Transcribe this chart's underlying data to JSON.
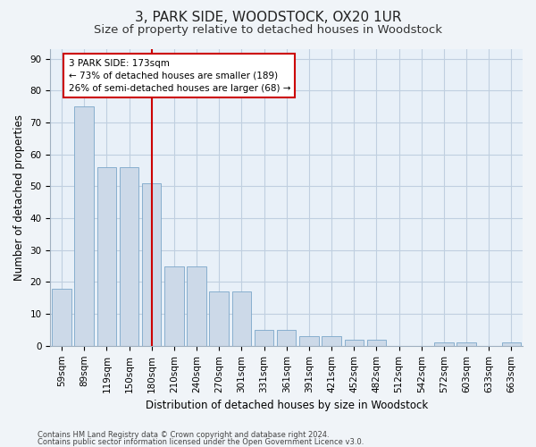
{
  "title": "3, PARK SIDE, WOODSTOCK, OX20 1UR",
  "subtitle": "Size of property relative to detached houses in Woodstock",
  "xlabel": "Distribution of detached houses by size in Woodstock",
  "ylabel": "Number of detached properties",
  "footer1": "Contains HM Land Registry data © Crown copyright and database right 2024.",
  "footer2": "Contains public sector information licensed under the Open Government Licence v3.0.",
  "categories": [
    "59sqm",
    "89sqm",
    "119sqm",
    "150sqm",
    "180sqm",
    "210sqm",
    "240sqm",
    "270sqm",
    "301sqm",
    "331sqm",
    "361sqm",
    "391sqm",
    "421sqm",
    "452sqm",
    "482sqm",
    "512sqm",
    "542sqm",
    "572sqm",
    "603sqm",
    "633sqm",
    "663sqm"
  ],
  "values": [
    18,
    75,
    56,
    56,
    51,
    25,
    25,
    17,
    17,
    5,
    5,
    3,
    3,
    2,
    2,
    0,
    0,
    1,
    1,
    0,
    1
  ],
  "bar_color": "#ccd9e8",
  "bar_edge_color": "#7ba7c9",
  "vline_x_index": 4,
  "vline_color": "#cc0000",
  "annotation_text": "3 PARK SIDE: 173sqm\n← 73% of detached houses are smaller (189)\n26% of semi-detached houses are larger (68) →",
  "annotation_box_facecolor": "#ffffff",
  "annotation_box_edgecolor": "#cc0000",
  "ylim": [
    0,
    93
  ],
  "yticks": [
    0,
    10,
    20,
    30,
    40,
    50,
    60,
    70,
    80,
    90
  ],
  "bg_color": "#f0f4f8",
  "plot_bg_color": "#e8f0f8",
  "grid_color": "#c0cfe0",
  "title_fontsize": 11,
  "subtitle_fontsize": 9.5,
  "axis_label_fontsize": 8.5,
  "tick_fontsize": 7.5,
  "footer_fontsize": 6.0
}
